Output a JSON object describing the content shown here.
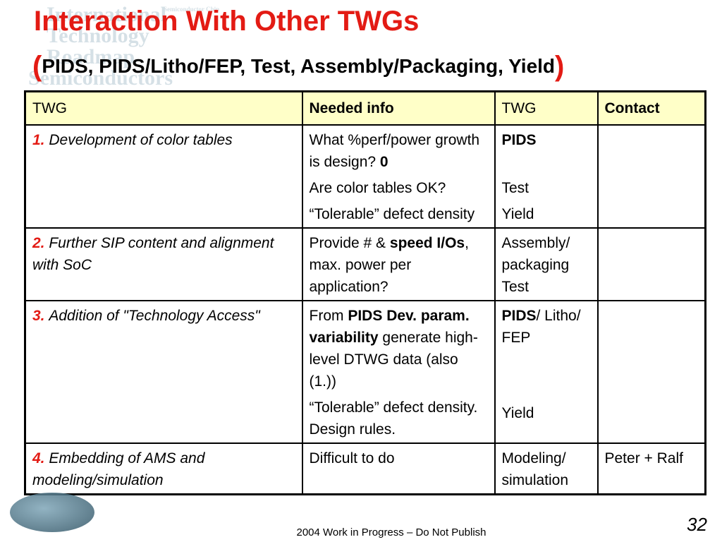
{
  "slide": {
    "title": "Interaction With Other TWGs",
    "subtitle_open": "(",
    "subtitle": "PIDS, PIDS/Litho/FEP, Test, Assembly/Packaging, Yield",
    "subtitle_close": ")",
    "footer": "2004 Work in Progress – Do Not Publish",
    "page_number": "32"
  },
  "watermark": {
    "lines": [
      "International",
      "Technology",
      "Roadmap",
      "Semiconductors"
    ],
    "small_text": "Semiconductor Chip"
  },
  "table": {
    "headers": [
      "TWG",
      "Needed info",
      "TWG",
      "Contact"
    ],
    "rows": [
      {
        "num": "1.",
        "topic": "Development of color tables",
        "info": [
          {
            "a": "What %perf/power growth is design?",
            "b": "0"
          },
          {
            "a": "Are color tables OK?"
          },
          {
            "a": "“Tolerable” defect density"
          }
        ],
        "twg": [
          "PIDS",
          "Test",
          "Yield"
        ],
        "contact": ""
      },
      {
        "num": "2.",
        "topic": "Further SIP content and alignment with SoC",
        "info_pre": "Provide # &",
        "info_bold": "speed I/Os",
        "info_post": ", max. power per application?",
        "twg": [
          "Assembly/ packaging",
          "Test"
        ],
        "contact": ""
      },
      {
        "num": "3.",
        "topic": "Addition of \"Technology Access\"",
        "info_pre": "From",
        "info_bold": "PIDS Dev. param. variability",
        "info_post": "generate high-level DTWG data (also (1.))",
        "info2": "“Tolerable” defect density. Design rules.",
        "twg_bold": "PIDS",
        "twg_rest": "/ Litho/ FEP",
        "twg2": "Yield",
        "contact": ""
      },
      {
        "num": "4.",
        "topic": "Embedding of AMS and modeling/simulation",
        "info": "Difficult to do",
        "twg": "Modeling/ simulation",
        "contact": "Peter + Ralf"
      }
    ]
  }
}
